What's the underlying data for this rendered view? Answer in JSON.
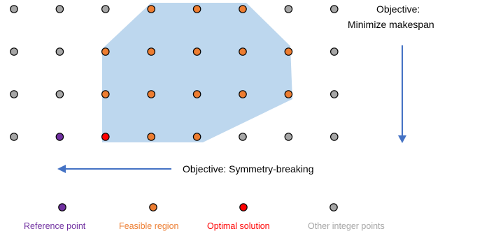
{
  "colors": {
    "reference": "#7030a0",
    "feasible": "#ed7d31",
    "optimal": "#ff0000",
    "other": "#a6a6a6",
    "region_fill": "#bdd7ee",
    "arrow": "#4472c4",
    "dot_stroke": "#000000"
  },
  "grid": {
    "columns": 8,
    "rows": 4,
    "points": [
      [
        "other",
        "other",
        "other",
        "feasible",
        "feasible",
        "feasible",
        "other",
        "other"
      ],
      [
        "other",
        "other",
        "feasible",
        "feasible",
        "feasible",
        "feasible",
        "feasible",
        "other"
      ],
      [
        "other",
        "other",
        "feasible",
        "feasible",
        "feasible",
        "feasible",
        "feasible",
        "other"
      ],
      [
        "other",
        "reference",
        "optimal",
        "feasible",
        "feasible",
        "other",
        "other",
        "other"
      ]
    ]
  },
  "annotations": {
    "vertical_objective_line1": "Objective:",
    "vertical_objective_line2": "Minimize makespan",
    "horizontal_objective": "Objective: Symmetry-breaking"
  },
  "legend": [
    {
      "key": "reference",
      "label": "Reference point"
    },
    {
      "key": "feasible",
      "label": "Feasible region"
    },
    {
      "key": "optimal",
      "label": "Optimal solution"
    },
    {
      "key": "other",
      "label": "Other integer points"
    }
  ]
}
